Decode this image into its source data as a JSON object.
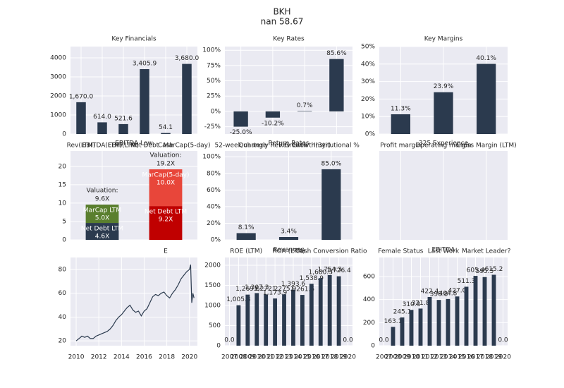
{
  "title": "BKH",
  "subtitle": "nan 58.67",
  "chart_data": [
    {
      "type": "bar",
      "title": "Key Financials",
      "categories": [
        "Rev(LTM)",
        "EBITDA(LTM)",
        "EBIT(LTM)",
        "Net Debt",
        "Cash",
        "MarCap(5-day)"
      ],
      "values": [
        1670.0,
        614.0,
        521.6,
        3405.9,
        54.1,
        3680.0
      ],
      "value_labels": [
        "1,670.0",
        "614.0",
        "521.6",
        "3,405.9",
        "54.1",
        "3,680.0"
      ],
      "color": "#2b3a4e",
      "ylim": [
        0,
        4590
      ],
      "yticks": [
        0,
        1000,
        2000,
        3000,
        4000
      ],
      "grid": true
    },
    {
      "type": "bar",
      "title": "Key Rates",
      "categories": [
        "52-week change",
        "Quarterly Rev Growth",
        "Rev Growth(3yr)",
        "Institutional %"
      ],
      "values": [
        -25.0,
        -10.2,
        0.7,
        85.6
      ],
      "value_labels": [
        "-25.0%",
        "-10.2%",
        "0.7%",
        "85.6%"
      ],
      "color": "#2b3a4e",
      "ylim": [
        -37,
        106
      ],
      "yticks": [
        {
          "value": -25,
          "label": "-25%"
        },
        {
          "value": 0,
          "label": "0%"
        },
        {
          "value": 25,
          "label": "25%"
        },
        {
          "value": 50,
          "label": "50%"
        },
        {
          "value": 75,
          "label": "75%"
        },
        {
          "value": 100,
          "label": "100%"
        }
      ],
      "grid": true
    },
    {
      "type": "bar",
      "title": "Key Margins",
      "categories": [
        "Profit margin",
        "Operating margin",
        "Gross Margin (LTM)"
      ],
      "values": [
        11.3,
        23.9,
        40.1
      ],
      "value_labels": [
        "11.3%",
        "23.9%",
        "40.1%"
      ],
      "color": "#2b3a4e",
      "ylim": [
        0,
        50
      ],
      "yticks": [
        {
          "value": 0,
          "label": "0%"
        },
        {
          "value": 10,
          "label": "10%"
        },
        {
          "value": 20,
          "label": "20%"
        },
        {
          "value": 30,
          "label": "30%"
        },
        {
          "value": 40,
          "label": "40%"
        },
        {
          "value": 50,
          "label": "50%"
        }
      ],
      "grid": true
    },
    {
      "type": "stacked",
      "title": "EBITDA Low",
      "categories": [
        null,
        "E"
      ],
      "ylim": [
        0,
        24.2
      ],
      "yticks": [
        0,
        5,
        10,
        15,
        20
      ],
      "grid": true,
      "bars": [
        {
          "total_title": "Valuation:",
          "total_label": "9.6X",
          "segments": [
            {
              "name": "Net Debt LTM",
              "value": 4.6,
              "label": "4.6X",
              "color": "#2b3a4e"
            },
            {
              "name": "MarCap LTM",
              "value": 5.0,
              "label": "5.0X",
              "color": "#5a7f2e"
            }
          ]
        },
        {
          "total_title": "Valuation:",
          "total_label": "19.2X",
          "segments": [
            {
              "name": "Net Debt LTM",
              "value": 9.2,
              "label": "9.2X",
              "color": "#c00000"
            },
            {
              "name": "MarCap(5-day)",
              "value": 10.0,
              "label": "10.0X",
              "color": "#e8463a"
            }
          ]
        }
      ]
    },
    {
      "type": "bar",
      "title": "Return Rates",
      "categories": [
        "ROE (LTM)",
        "ROA (LTM)",
        "Cash Conversion Ratio"
      ],
      "values": [
        8.1,
        3.4,
        85.0
      ],
      "value_labels": [
        "8.1%",
        "3.4%",
        "85.0%"
      ],
      "color": "#2b3a4e",
      "ylim": [
        0,
        107
      ],
      "yticks": [
        {
          "value": 0,
          "label": "0%"
        },
        {
          "value": 20,
          "label": "20%"
        },
        {
          "value": 40,
          "label": "40%"
        },
        {
          "value": 60,
          "label": "60%"
        },
        {
          "value": 80,
          "label": "80%"
        },
        {
          "value": 100,
          "label": "100%"
        }
      ],
      "grid": true
    },
    {
      "type": "bar",
      "title": "325 Experience",
      "categories": [
        "Female Status",
        "Last Work",
        "Market Leader?"
      ],
      "grid": true
    },
    {
      "type": "line",
      "color": "#2b3a4e",
      "xlim": [
        2009.5,
        2020.7
      ],
      "xticks": [
        2010,
        2012,
        2014,
        2016,
        2018,
        2020
      ],
      "ylim": [
        16,
        90
      ],
      "yticks": [
        20,
        40,
        60,
        80
      ],
      "grid": true,
      "x": [
        2010,
        2010.25,
        2010.5,
        2010.75,
        2011,
        2011.25,
        2011.5,
        2011.75,
        2012,
        2012.25,
        2012.5,
        2012.75,
        2013,
        2013.25,
        2013.5,
        2013.75,
        2014,
        2014.25,
        2014.5,
        2014.75,
        2015,
        2015.25,
        2015.5,
        2015.75,
        2016,
        2016.25,
        2016.5,
        2016.75,
        2017,
        2017.25,
        2017.5,
        2017.75,
        2018,
        2018.25,
        2018.5,
        2018.75,
        2019,
        2019.25,
        2019.5,
        2019.75,
        2020,
        2020.1,
        2020.2,
        2020.3,
        2020.4
      ],
      "values": [
        20,
        22,
        24,
        23,
        24,
        22,
        22,
        24,
        25,
        26,
        27,
        28,
        30,
        33,
        37,
        40,
        42,
        45,
        48,
        50,
        46,
        44,
        45,
        41,
        45,
        47,
        52,
        57,
        59,
        58,
        60,
        61,
        58,
        56,
        60,
        63,
        67,
        72,
        75,
        78,
        80,
        84,
        52,
        60,
        56
      ]
    },
    {
      "type": "bar",
      "title": "Revenues",
      "categories": [
        "2007",
        "2008",
        "2009",
        "2010",
        "2011",
        "2012",
        "2013",
        "2014",
        "2015",
        "2016",
        "2017",
        "2018",
        "2019",
        "2020"
      ],
      "values": [
        0.0,
        1005.3,
        1269.6,
        1307.3,
        1272.2,
        1173.9,
        1275.9,
        1393.6,
        1261.5,
        1538.9,
        1680.3,
        1754.3,
        1726.4,
        0.0
      ],
      "value_labels": [
        "0.0",
        "1,005.3",
        "1,269.6",
        "1,307.3",
        "1,272.2",
        "1,173.9",
        "1,275.9",
        "1,393.6",
        "1,261.5",
        "1,538.9",
        "1,680.3",
        "1,754.3",
        "1,726.4",
        "0.0"
      ],
      "color": "#2b3a4e",
      "ylim": [
        0,
        2193
      ],
      "yticks": [
        0,
        500,
        1000,
        1500,
        2000
      ],
      "grid": true
    },
    {
      "type": "bar",
      "title": "EBITDA",
      "categories": [
        "2007",
        "2008",
        "2009",
        "2010",
        "2011",
        "2012",
        "2013",
        "2014",
        "2015",
        "2016",
        "2017",
        "2018",
        "2019",
        "2020"
      ],
      "values": [
        0.0,
        163.1,
        245.1,
        310.3,
        321.8,
        422.4,
        396.8,
        404.8,
        427.0,
        511.3,
        605.4,
        595.5,
        615.2,
        0.0
      ],
      "value_labels": [
        "0.0",
        "163.1",
        "245.1",
        "310.3",
        "321.8",
        "422.4",
        "396.8",
        "404.8",
        "427.0",
        "511.3",
        "605.4",
        "595.5",
        "615.2",
        "0.0"
      ],
      "color": "#2b3a4e",
      "ylim": [
        0,
        765
      ],
      "yticks": [
        0,
        200,
        400,
        600
      ],
      "grid": true
    }
  ]
}
